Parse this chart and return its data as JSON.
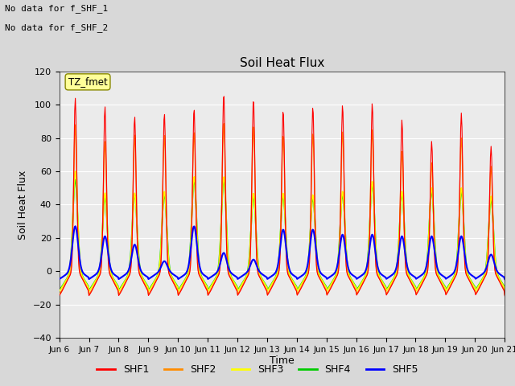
{
  "title": "Soil Heat Flux",
  "ylabel": "Soil Heat Flux",
  "xlabel": "Time",
  "annotations": [
    "No data for f_SHF_1",
    "No data for f_SHF_2"
  ],
  "legend_label": "TZ_fmet",
  "series_labels": [
    "SHF1",
    "SHF2",
    "SHF3",
    "SHF4",
    "SHF5"
  ],
  "series_colors": [
    "#ff0000",
    "#ff8c00",
    "#ffff00",
    "#00cc00",
    "#0000ff"
  ],
  "ylim": [
    -40,
    120
  ],
  "yticks": [
    -40,
    -20,
    0,
    20,
    40,
    60,
    80,
    100,
    120
  ],
  "background_color": "#d8d8d8",
  "plot_bg_color": "#ebebeb",
  "n_days": 15,
  "start_day": 6,
  "peaks_shf1": [
    104,
    99,
    93,
    95,
    98,
    107,
    104,
    97,
    99,
    100,
    101,
    91,
    78,
    95,
    75
  ],
  "peaks_shf2": [
    88,
    78,
    82,
    82,
    84,
    90,
    88,
    82,
    83,
    84,
    85,
    72,
    65,
    80,
    63
  ],
  "peaks_shf3": [
    60,
    47,
    47,
    48,
    57,
    57,
    47,
    47,
    46,
    48,
    54,
    48,
    50,
    50,
    45
  ],
  "peaks_shf4": [
    55,
    44,
    46,
    46,
    55,
    55,
    45,
    45,
    44,
    46,
    52,
    46,
    48,
    48,
    43
  ],
  "peaks_shf5": [
    27,
    21,
    16,
    6,
    27,
    11,
    7,
    25,
    25,
    22,
    22,
    21,
    21,
    21,
    10
  ]
}
